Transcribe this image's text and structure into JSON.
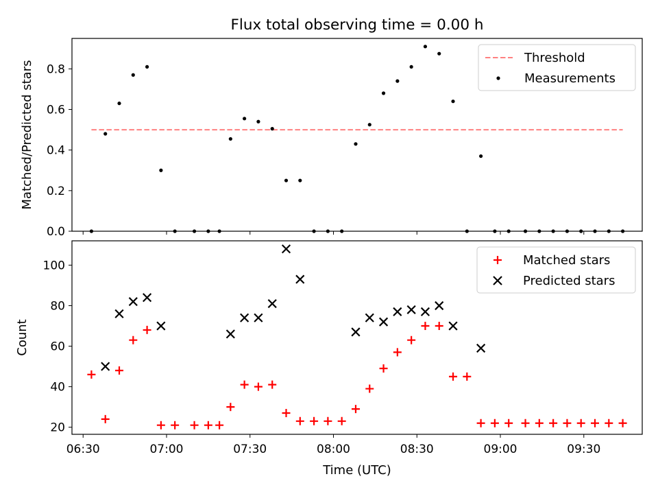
{
  "title": "Flux total observing time = 0.00 h",
  "chart_data": [
    {
      "type": "scatter",
      "panel": "top",
      "ylabel": "Matched/Predicted stars",
      "ylim": [
        0,
        0.95
      ],
      "yticks": [
        0.0,
        0.2,
        0.4,
        0.6,
        0.8
      ],
      "ytick_labels": [
        "0.0",
        "0.2",
        "0.4",
        "0.6",
        "0.8"
      ],
      "legend_position": "top-right",
      "threshold": {
        "name": "Threshold",
        "value": 0.5,
        "x": [
          "06:33",
          "09:44"
        ],
        "color": "#ff8080",
        "style": "dashed"
      },
      "series": [
        {
          "name": "Measurements",
          "color": "#000000",
          "marker": "dot",
          "x": [
            "06:33",
            "06:38",
            "06:43",
            "06:48",
            "06:53",
            "06:58",
            "07:03",
            "07:10",
            "07:15",
            "07:19",
            "07:23",
            "07:28",
            "07:33",
            "07:38",
            "07:43",
            "07:48",
            "07:53",
            "07:58",
            "08:03",
            "08:08",
            "08:13",
            "08:18",
            "08:23",
            "08:28",
            "08:33",
            "08:38",
            "08:43",
            "08:48",
            "08:53",
            "08:58",
            "09:03",
            "09:09",
            "09:14",
            "09:19",
            "09:24",
            "09:29",
            "09:34",
            "09:39",
            "09:44"
          ],
          "y": [
            0.0,
            0.48,
            0.63,
            0.77,
            0.81,
            0.3,
            0.0,
            0.0,
            0.0,
            0.0,
            0.455,
            0.555,
            0.54,
            0.505,
            0.25,
            0.25,
            0.0,
            0.0,
            0.0,
            0.43,
            0.525,
            0.68,
            0.74,
            0.81,
            0.91,
            0.875,
            0.64,
            0.0,
            0.37,
            0.0,
            0.0,
            0.0,
            0.0,
            0.0,
            0.0,
            0.0,
            0.0,
            0.0,
            0.0
          ]
        }
      ]
    },
    {
      "type": "scatter",
      "panel": "bottom",
      "xlabel": "Time (UTC)",
      "ylabel": "Count",
      "ylim": [
        16.5,
        112
      ],
      "yticks": [
        20,
        40,
        60,
        80,
        100
      ],
      "ytick_labels": [
        "20",
        "40",
        "60",
        "80",
        "100"
      ],
      "xlim": [
        "06:26",
        "09:51"
      ],
      "xticks": [
        "06:30",
        "07:00",
        "07:30",
        "08:00",
        "08:30",
        "09:00",
        "09:30"
      ],
      "xtick_labels": [
        "06:30",
        "07:00",
        "07:30",
        "08:00",
        "08:30",
        "09:00",
        "09:30"
      ],
      "legend_position": "top-right",
      "series": [
        {
          "name": "Matched stars",
          "color": "#ff0000",
          "marker": "plus",
          "x": [
            "06:33",
            "06:38",
            "06:43",
            "06:48",
            "06:53",
            "06:58",
            "07:03",
            "07:10",
            "07:15",
            "07:19",
            "07:23",
            "07:28",
            "07:33",
            "07:38",
            "07:43",
            "07:48",
            "07:53",
            "07:58",
            "08:03",
            "08:08",
            "08:13",
            "08:18",
            "08:23",
            "08:28",
            "08:33",
            "08:38",
            "08:43",
            "08:48",
            "08:53",
            "08:58",
            "09:03",
            "09:09",
            "09:14",
            "09:19",
            "09:24",
            "09:29",
            "09:34",
            "09:39",
            "09:44"
          ],
          "y": [
            46,
            24,
            48,
            63,
            68,
            21,
            21,
            21,
            21,
            21,
            30,
            41,
            40,
            41,
            27,
            23,
            23,
            23,
            23,
            29,
            39,
            49,
            57,
            63,
            70,
            70,
            45,
            45,
            22,
            22,
            22,
            22,
            22,
            22,
            22,
            22,
            22,
            22,
            22
          ]
        },
        {
          "name": "Predicted stars",
          "color": "#000000",
          "marker": "x",
          "x": [
            "06:38",
            "06:43",
            "06:48",
            "06:53",
            "06:58",
            "07:23",
            "07:28",
            "07:33",
            "07:38",
            "07:43",
            "07:48",
            "08:08",
            "08:13",
            "08:18",
            "08:23",
            "08:28",
            "08:33",
            "08:38",
            "08:43",
            "08:53"
          ],
          "y": [
            50,
            76,
            82,
            84,
            70,
            66,
            74,
            74,
            81,
            108,
            93,
            67,
            74,
            72,
            77,
            78,
            77,
            80,
            70,
            59
          ]
        }
      ]
    }
  ]
}
